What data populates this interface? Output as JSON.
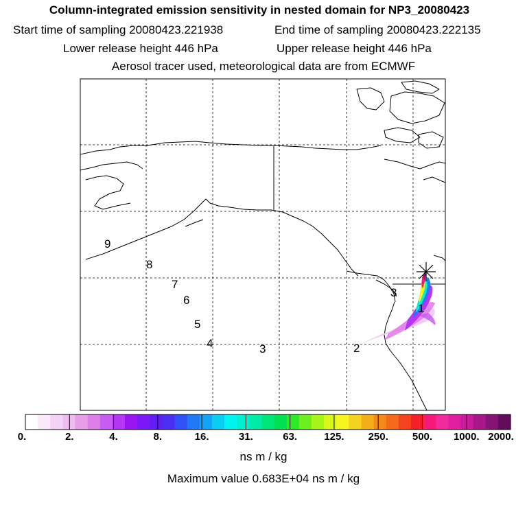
{
  "header": {
    "title": "Column-integrated emission sensitivity in nested domain for NP3_20080423",
    "start_time": "Start time of sampling 20080423.221938",
    "end_time": "End time of sampling 20080423.222135",
    "lower_height": "Lower release height  446 hPa",
    "upper_height": "Upper release height  446 hPa",
    "source_note": "Aerosol tracer used, meteorological data are from ECMWF"
  },
  "map": {
    "trajectory_labels": [
      "1",
      "2",
      "3",
      "4",
      "5",
      "6",
      "7",
      "8",
      "9"
    ],
    "release_marker": "receptor-star-icon"
  },
  "colorbar": {
    "tick_labels": [
      "0.",
      "2.",
      "4.",
      "8.",
      "16.",
      "31.",
      "63.",
      "125.",
      "250.",
      "500.",
      "1000.",
      "2000."
    ],
    "colors": [
      "#ffffff",
      "#fbe8fb",
      "#f5d2f5",
      "#efbcef",
      "#e79de7",
      "#dc7fe8",
      "#c95cf0",
      "#b636f5",
      "#9a14f0",
      "#7a19f5",
      "#5f1ff0",
      "#4a2ff0",
      "#3150f5",
      "#1f78f5",
      "#12a3f5",
      "#0bcdf2",
      "#00f5f0",
      "#00f0d0",
      "#00eba8",
      "#00e57a",
      "#00e050",
      "#2ee82a",
      "#6ef020",
      "#a8f51a",
      "#d8f81a",
      "#f5f520",
      "#f5d21f",
      "#f5af1a",
      "#f58a1a",
      "#f56a1c",
      "#f5421f",
      "#f51f2a",
      "#f5197a",
      "#f02b9e",
      "#e01fa0",
      "#c81c9a",
      "#a8178c",
      "#871278",
      "#620c5a"
    ],
    "units": "ns m / kg",
    "max_value": "Maximum value  0.683E+04 ns m / kg"
  }
}
